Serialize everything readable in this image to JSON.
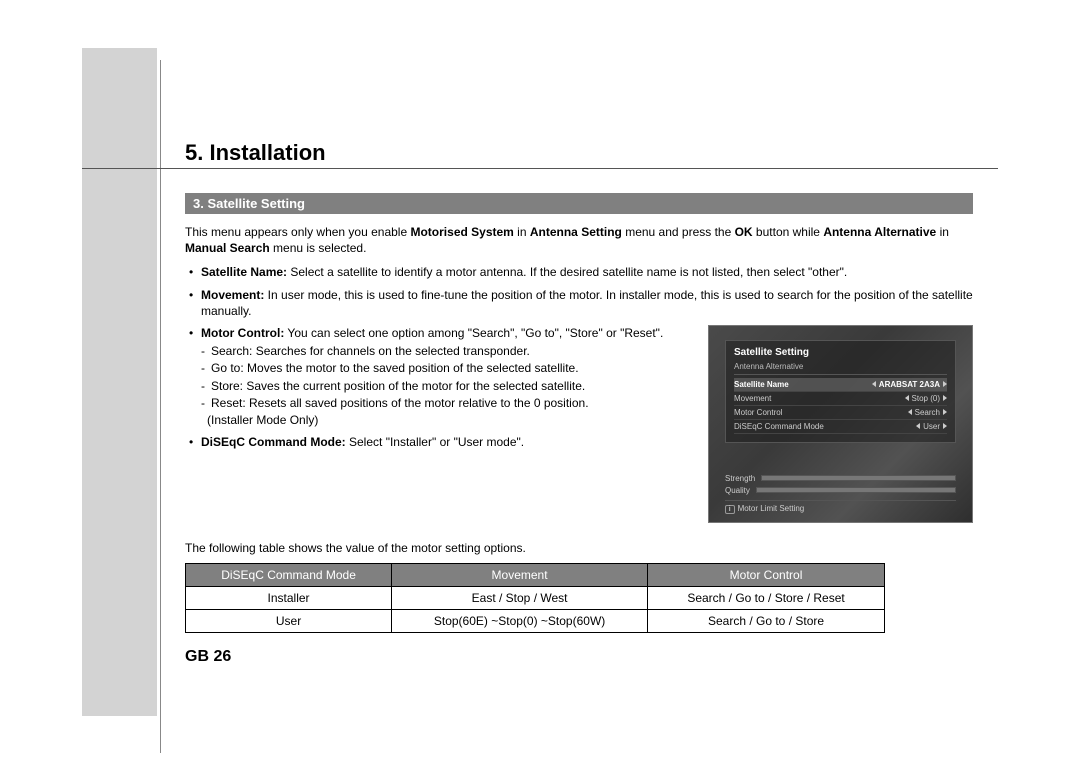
{
  "chapter_title": "5. Installation",
  "section_bar": "3. Satellite Setting",
  "intro": {
    "t1": "This menu appears only when you enable ",
    "b1": "Motorised System",
    "t2": " in ",
    "b2": "Antenna Setting",
    "t3": " menu and press the ",
    "b3": "OK",
    "t4": " button while ",
    "b4": "Antenna Alternative",
    "t5": " in ",
    "b5": "Manual Search",
    "t6": " menu is selected."
  },
  "bullets": {
    "sat_name": {
      "label": "Satellite Name:",
      "text": " Select a satellite to identify a motor antenna. If the desired satellite name is not listed, then select \"other\"."
    },
    "movement": {
      "label": "Movement:",
      "text": " In user mode, this is used to fine-tune the position of the motor. In installer mode, this is used to search for the position of the satellite manually."
    },
    "motor_control": {
      "label": "Motor Control:",
      "text": " You can select one option among \"Search\", \"Go to\", \"Store\" or \"Reset\"."
    },
    "sub": {
      "search": "Search: Searches for channels on the selected transponder.",
      "goto": "Go to: Moves the motor to the saved position of the selected satellite.",
      "store": "Store: Saves the current position of the motor for the selected satellite.",
      "reset": "Reset: Resets all saved positions of the motor relative to the 0 position."
    },
    "installer_note": "(Installer Mode Only)",
    "diseqc": {
      "label": "DiSEqC Command Mode:",
      "text": " Select \"Installer\" or \"User mode\"."
    }
  },
  "table_caption": "The following table shows the value of the motor setting options.",
  "table": {
    "headers": [
      "DiSEqC Command Mode",
      "Movement",
      "Motor Control"
    ],
    "rows": [
      [
        "Installer",
        "East / Stop / West",
        "Search / Go to / Store / Reset"
      ],
      [
        "User",
        "Stop(60E) ~Stop(0) ~Stop(60W)",
        "Search / Go to / Store"
      ]
    ]
  },
  "page_number": "GB 26",
  "osd": {
    "title": "Satellite Setting",
    "subtitle": "Antenna Alternative",
    "rows": [
      {
        "label": "Satellite Name",
        "value": "ARABSAT 2A3A",
        "hi": true
      },
      {
        "label": "Movement",
        "value": "Stop (0)"
      },
      {
        "label": "Motor Control",
        "value": "Search"
      },
      {
        "label": "DiSEqC Command Mode",
        "value": "User"
      }
    ],
    "meters": {
      "m1_label": "Strength",
      "m1_fill": 0,
      "m2_label": "Quality",
      "m2_fill": 0
    },
    "footer_key": "i",
    "footer_text": "Motor Limit Setting"
  },
  "colors": {
    "page_bg": "#d3d3d3",
    "bar_bg": "#808080",
    "bar_fg": "#ffffff",
    "text": "#000000"
  }
}
